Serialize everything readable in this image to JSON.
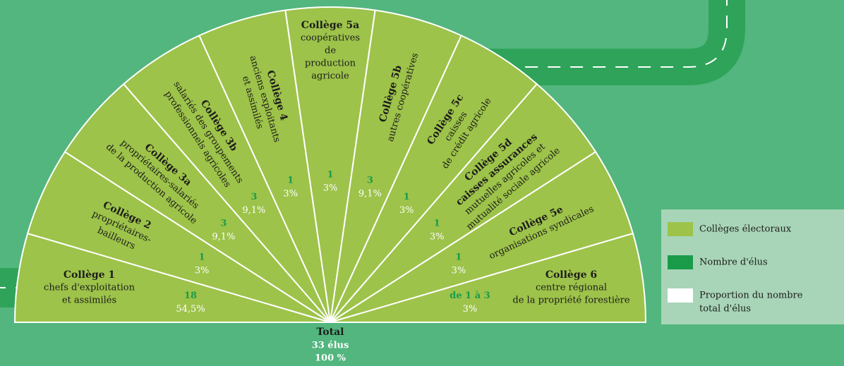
{
  "sectors": [
    {
      "title": "Collège 1",
      "description": [
        "chefs d'exploitation",
        "et assimilés"
      ],
      "elus": "18",
      "proportion": "54,5%"
    },
    {
      "title": "Collège 2",
      "description": [
        "propriétaires-",
        "bailleurs"
      ],
      "elus": "1",
      "proportion": "3%"
    },
    {
      "title": "Collège 3a",
      "description": [
        "propriétaires-salariés",
        "de la production agricole"
      ],
      "elus": "3",
      "proportion": "9,1%"
    },
    {
      "title": "Collège 3b",
      "description": [
        "salariés des groupements",
        "professionnels agricoles"
      ],
      "elus": "3",
      "proportion": "9,1%"
    },
    {
      "title": "Collège 4",
      "description": [
        "anciens exploitants",
        "et assimilés"
      ],
      "elus": "1",
      "proportion": "3%"
    },
    {
      "title": "Collège 5a",
      "description": [
        "coopératives",
        "de",
        "production",
        "agricole"
      ],
      "elus": "1",
      "proportion": "3%"
    },
    {
      "title": "Collège 5b",
      "description": [
        "autres coopératives"
      ],
      "elus": "3",
      "proportion": "9,1%"
    },
    {
      "title": "Collège 5c",
      "description": [
        "caisses",
        "de crédit agricole"
      ],
      "elus": "1",
      "proportion": "3%"
    },
    {
      "title": "Collège 5d",
      "description": [
        "caisses assurances",
        "mutuelles agricoles et",
        "mutualité sociale agricole"
      ],
      "elus": "1",
      "proportion": "3%"
    },
    {
      "title": "Collège 5e",
      "description": [
        "organisations syndicales"
      ],
      "elus": "1",
      "proportion": "3%"
    },
    {
      "title": "Collège 6",
      "description": [
        "centre régional",
        "de la propriété forestière"
      ],
      "elus": "de 1 à 3",
      "proportion": "3%"
    }
  ],
  "total": {
    "label": "Total",
    "elus": "33 élus",
    "proportion": "100 %"
  },
  "legend": [
    {
      "label": [
        "Collèges électoraux"
      ]
    },
    {
      "label": [
        "Nombre d'élus"
      ]
    },
    {
      "label": [
        "Proportion du nombre",
        "total d'élus"
      ]
    }
  ]
}
